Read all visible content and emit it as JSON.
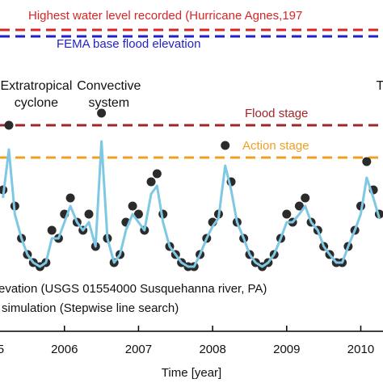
{
  "chart_data": {
    "type": "scatter_line",
    "x": [
      2005.17,
      2005.25,
      2005.33,
      2005.42,
      2005.5,
      2005.58,
      2005.67,
      2005.75,
      2005.83,
      2005.92,
      2006.0,
      2006.08,
      2006.17,
      2006.25,
      2006.33,
      2006.42,
      2006.5,
      2006.58,
      2006.67,
      2006.75,
      2006.83,
      2006.92,
      2007.0,
      2007.08,
      2007.17,
      2007.25,
      2007.33,
      2007.42,
      2007.5,
      2007.58,
      2007.67,
      2007.75,
      2007.83,
      2007.92,
      2008.0,
      2008.08,
      2008.17,
      2008.25,
      2008.33,
      2008.42,
      2008.5,
      2008.58,
      2008.67,
      2008.75,
      2008.83,
      2008.92,
      2009.0,
      2009.08,
      2009.17,
      2009.25,
      2009.33,
      2009.42,
      2009.5,
      2009.58,
      2009.67,
      2009.75,
      2009.83,
      2009.92,
      2010.0,
      2010.08,
      2010.17,
      2010.25
    ],
    "series": [
      {
        "name": "evation (USGS 01554000 Susquehanna river, PA)",
        "color": "#2b2b2b",
        "style": "dots",
        "values": [
          16,
          24,
          14,
          10,
          8,
          7,
          6.5,
          7,
          11,
          10,
          13,
          15,
          12,
          11,
          13,
          9,
          25.5,
          10,
          7,
          8,
          12,
          14,
          13,
          11,
          17,
          18,
          13,
          9,
          8,
          7,
          6.5,
          6.5,
          8,
          10,
          12,
          13,
          21.5,
          17,
          12,
          10,
          8,
          7,
          6.5,
          7,
          8,
          10,
          13,
          12,
          14,
          15,
          12,
          11,
          9,
          8,
          7,
          7,
          9,
          11,
          14,
          19.5,
          16,
          13
        ]
      },
      {
        "name": "simulation (Stepwise line search)",
        "color": "#7ec8e3",
        "style": "line",
        "values": [
          15,
          21,
          13,
          10,
          8,
          7,
          6.5,
          7,
          10,
          10,
          12,
          14,
          12,
          11,
          12,
          9,
          22,
          10,
          7,
          8,
          11,
          13,
          12,
          11,
          15.5,
          16.5,
          12,
          9,
          8,
          7,
          6.5,
          6.5,
          8,
          10,
          11.5,
          12.5,
          19,
          16,
          12,
          10,
          8,
          7,
          6.5,
          7,
          8,
          10,
          12,
          12,
          13,
          14,
          12,
          11,
          9,
          8,
          7,
          7,
          9,
          11,
          13,
          17.5,
          15,
          12.5
        ]
      }
    ],
    "xlim": [
      2005.13,
      2010.3
    ],
    "ylim": [
      -1.5,
      39.5
    ],
    "xticks": [
      {
        "value": 2005,
        "label": "5"
      },
      2006,
      2007,
      2008,
      2009,
      2010
    ],
    "xlabel": "Time [year]",
    "reference_lines": [
      {
        "label": "Highest water level recorded (Hurricane Agnes,197",
        "value": 35.8,
        "color": "#d62728"
      },
      {
        "label": "FEMA base flood elevation",
        "value": 35.0,
        "color": "#1f1fcc"
      },
      {
        "label": "Flood stage",
        "value": 24,
        "color": "#a0262a"
      },
      {
        "label": "Action stage",
        "value": 20,
        "color": "#f0a020"
      }
    ],
    "annotations": [
      {
        "lines": [
          "Extratropical",
          "cyclone"
        ],
        "x": 2005.62
      },
      {
        "lines": [
          "Convective",
          "system"
        ],
        "x": 2006.6
      },
      {
        "lines": [
          "T"
        ],
        "x": 2010.26
      }
    ]
  }
}
